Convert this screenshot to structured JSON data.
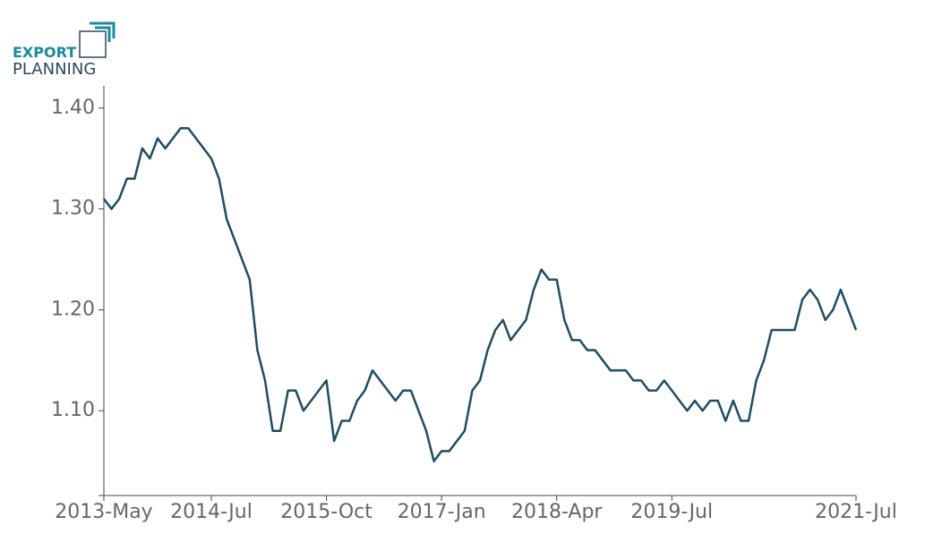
{
  "logo": {
    "line1": "EXPORT",
    "line2": "PLANNING"
  },
  "chart_data": {
    "type": "line",
    "categories": [
      "2013-May",
      null,
      null,
      null,
      null,
      null,
      null,
      null,
      null,
      null,
      null,
      null,
      null,
      null,
      "2014-Jul",
      null,
      null,
      null,
      null,
      null,
      null,
      null,
      null,
      null,
      null,
      null,
      null,
      null,
      null,
      "2015-Oct",
      null,
      null,
      null,
      null,
      null,
      null,
      null,
      null,
      null,
      null,
      null,
      null,
      null,
      null,
      "2017-Jan",
      null,
      null,
      null,
      null,
      null,
      null,
      null,
      null,
      null,
      null,
      null,
      null,
      null,
      null,
      "2018-Apr",
      null,
      null,
      null,
      null,
      null,
      null,
      null,
      null,
      null,
      null,
      null,
      null,
      null,
      null,
      "2019-Jul",
      null,
      null,
      null,
      null,
      null,
      null,
      null,
      null,
      null,
      null,
      null,
      null,
      null,
      null,
      null,
      null,
      null,
      null,
      null,
      null,
      null,
      null,
      null,
      "2021-Jul"
    ],
    "series": [
      {
        "color": "#1e4d62",
        "values": [
          1.31,
          1.3,
          1.31,
          1.33,
          1.33,
          1.36,
          1.35,
          1.37,
          1.36,
          1.37,
          1.38,
          1.38,
          1.37,
          1.36,
          1.35,
          1.33,
          1.29,
          1.27,
          1.25,
          1.23,
          1.16,
          1.13,
          1.08,
          1.08,
          1.12,
          1.12,
          1.1,
          1.11,
          1.12,
          1.13,
          1.07,
          1.09,
          1.09,
          1.11,
          1.12,
          1.14,
          1.13,
          1.12,
          1.11,
          1.12,
          1.12,
          1.1,
          1.08,
          1.05,
          1.06,
          1.06,
          1.07,
          1.08,
          1.12,
          1.13,
          1.16,
          1.18,
          1.19,
          1.17,
          1.18,
          1.19,
          1.22,
          1.24,
          1.23,
          1.23,
          1.19,
          1.17,
          1.17,
          1.16,
          1.16,
          1.15,
          1.14,
          1.14,
          1.14,
          1.13,
          1.13,
          1.12,
          1.12,
          1.13,
          1.12,
          1.11,
          1.1,
          1.11,
          1.1,
          1.11,
          1.11,
          1.09,
          1.11,
          1.09,
          1.09,
          1.13,
          1.15,
          1.18,
          1.18,
          1.18,
          1.18,
          1.21,
          1.22,
          1.21,
          1.19,
          1.2,
          1.22,
          1.2,
          1.18
        ]
      }
    ],
    "ylim": [
      1.016,
      1.422
    ],
    "yticks": [
      {
        "value": 1.1,
        "label": "1.10"
      },
      {
        "value": 1.2,
        "label": "1.20"
      },
      {
        "value": 1.3,
        "label": "1.30"
      },
      {
        "value": 1.4,
        "label": "1.40"
      }
    ],
    "grid": false
  }
}
